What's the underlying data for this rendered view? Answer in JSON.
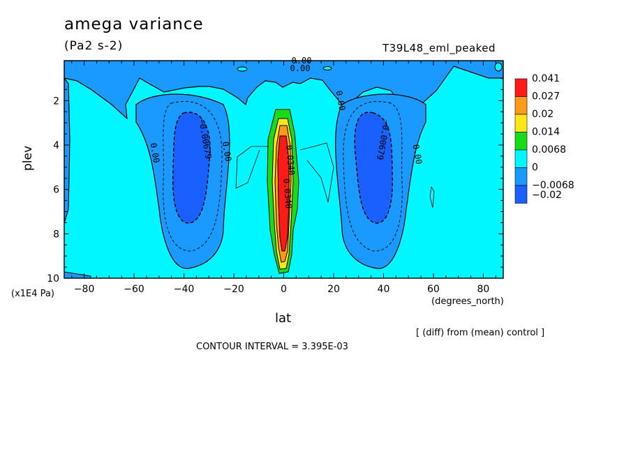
{
  "header": {
    "title": "amega variance",
    "units": "(Pa2 s-2)",
    "experiment": "T39L48_eml_peaked"
  },
  "footer": {
    "diff_note": "[ (diff) from (mean) control ]",
    "contour_interval": "CONTOUR INTERVAL = 3.395E-03"
  },
  "chart_data": {
    "type": "heatmap",
    "title": "amega variance",
    "subtitle": "(Pa2 s-2)",
    "xlabel": "lat",
    "x_units": "(degrees_north)",
    "ylabel": "plev",
    "y_units": "(x1E4 Pa)",
    "xlim": [
      -88,
      88
    ],
    "ylim": [
      0.2,
      10
    ],
    "y_inverted": true,
    "x_ticks": [
      -80,
      -60,
      -40,
      -20,
      0,
      20,
      40,
      60,
      80
    ],
    "x_tick_labels": [
      "−80",
      "−60",
      "−40",
      "−20",
      "0",
      "20",
      "40",
      "60",
      "80"
    ],
    "y_ticks": [
      2,
      4,
      6,
      8,
      10
    ],
    "legend": {
      "position": "right",
      "levels": [
        "0.041",
        "0.027",
        "0.02",
        "0.014",
        "0.0068",
        "0",
        "−0.0068",
        "−0.02"
      ],
      "colors": [
        "#ff1a1a",
        "#ff9a1a",
        "#ffe619",
        "#19dc19",
        "#00f7ff",
        "#1a9aff",
        "#1a60ff"
      ]
    },
    "fill_colors": {
      "background_cyan": "#00f7ff",
      "mid_blue": "#1a9aff",
      "deep_blue": "#1a60ff",
      "green": "#19dc19",
      "yellow": "#ffe619",
      "orange": "#ff9a1a",
      "red": "#ff1a1a"
    },
    "regions": [
      {
        "name": "southern negative minimum",
        "center_lat": -38,
        "center_plev": 5.0,
        "value": -0.0204
      },
      {
        "name": "northern negative minimum",
        "center_lat": 38,
        "center_plev": 5.0,
        "value": -0.0204
      },
      {
        "name": "equatorial maximum",
        "center_lat": 0,
        "center_plev": 6.0,
        "value": 0.041
      }
    ],
    "contour_labels": [
      "0.00",
      "0.00",
      "−0.00679",
      "0.00",
      "−0.00679",
      "0.00",
      "0.00",
      "0.00",
      "0.0340",
      "0.0340"
    ]
  }
}
